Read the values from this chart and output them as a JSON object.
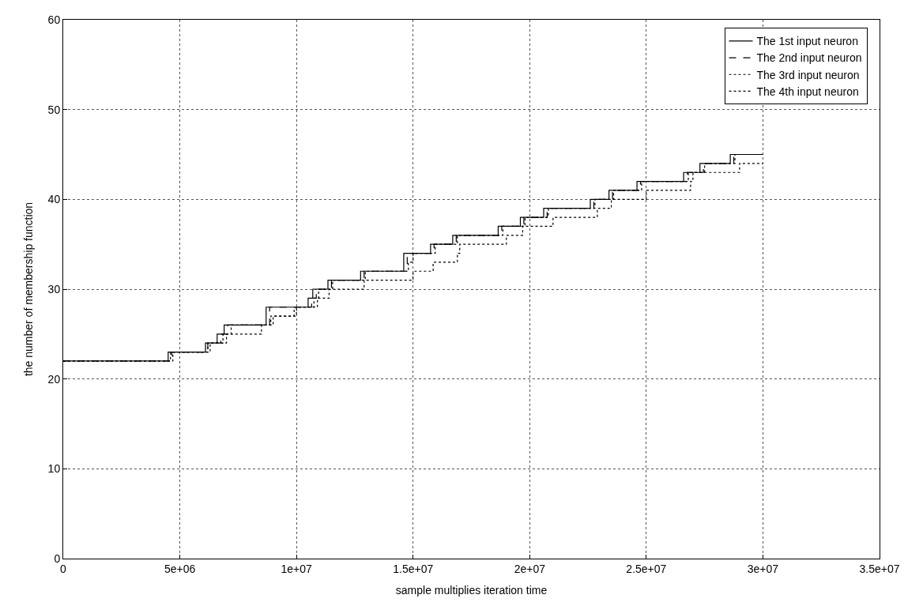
{
  "chart_data": {
    "type": "step",
    "xlabel": "sample multiplies iteration time",
    "ylabel": "the number of membership function",
    "xlim": [
      0,
      35000000
    ],
    "ylim": [
      0,
      60
    ],
    "xticks": [
      0,
      {
        "value": 5000000,
        "label": "5e+06"
      },
      {
        "value": 10000000,
        "label": "1e+07"
      },
      {
        "value": 15000000,
        "label": "1.5e+07"
      },
      {
        "value": 20000000,
        "label": "2e+07"
      },
      {
        "value": 25000000,
        "label": "2.5e+07"
      },
      {
        "value": 30000000,
        "label": "3e+07"
      },
      {
        "value": 35000000,
        "label": "3.5e+07"
      }
    ],
    "yticks": [
      0,
      10,
      20,
      30,
      40,
      50,
      60
    ],
    "grid": true,
    "legend": "top right",
    "marker": "none",
    "series": [
      {
        "name": "The 1st input neuron",
        "color": "#000000",
        "line_style": "solid",
        "x": [
          0,
          4500000,
          6100000,
          6600000,
          6900000,
          8700000,
          10500000,
          10700000,
          11350000,
          12750000,
          14600000,
          15750000,
          16700000,
          18650000,
          19600000,
          20600000,
          22600000,
          23400000,
          24600000,
          26600000,
          27300000,
          28600000,
          30000000
        ],
        "values": [
          22,
          23,
          24,
          25,
          26,
          28,
          29,
          30,
          31,
          32,
          34,
          35,
          36,
          37,
          38,
          39,
          40,
          41,
          42,
          43,
          44,
          45,
          45
        ]
      },
      {
        "name": "The 2nd input neuron",
        "color": "#000000",
        "line_style": "dashed",
        "x": [
          0,
          4650000,
          6200000,
          6750000,
          7050000,
          8850000,
          10650000,
          10850000,
          11500000,
          12900000,
          14750000,
          15900000,
          16850000,
          18800000,
          19750000,
          20750000,
          22750000,
          23550000,
          24750000,
          26750000,
          27450000,
          28750000,
          30000000
        ],
        "values": [
          22,
          23,
          24,
          25,
          26,
          28,
          29,
          30,
          31,
          32,
          34,
          35,
          36,
          37,
          38,
          39,
          40,
          41,
          42,
          43,
          44,
          45,
          45
        ]
      },
      {
        "name": "The 3rd input neuron",
        "color": "#000000",
        "line_style": "dotted",
        "x": [
          0,
          4700000,
          6300000,
          6850000,
          7200000,
          8900000,
          9900000,
          10750000,
          10950000,
          11550000,
          12950000,
          14800000,
          15000000,
          15950000,
          16900000,
          18850000,
          19800000,
          20800000,
          22800000,
          23600000,
          24800000,
          26800000,
          27500000,
          28800000,
          30000000
        ],
        "values": [
          22,
          23,
          24,
          25,
          26,
          27,
          28,
          29,
          30,
          31,
          32,
          33,
          34,
          35,
          36,
          37,
          38,
          39,
          40,
          41,
          42,
          43,
          44,
          45,
          45
        ]
      },
      {
        "name": "The 4th input neuron",
        "color": "#000000",
        "line_style": "dotted",
        "x": [
          0,
          4600000,
          6200000,
          7000000,
          8500000,
          9000000,
          10000000,
          10900000,
          11400000,
          12900000,
          15000000,
          15860000,
          16900000,
          17000000,
          19000000,
          19700000,
          21000000,
          22900000,
          23500000,
          25000000,
          26900000,
          27000000,
          29000000,
          30000000
        ],
        "values": [
          22,
          23,
          24,
          25,
          26,
          27,
          28,
          29,
          30,
          31,
          32,
          33,
          34,
          35,
          36,
          37,
          38,
          39,
          40,
          41,
          42,
          43,
          44,
          44
        ]
      }
    ]
  }
}
